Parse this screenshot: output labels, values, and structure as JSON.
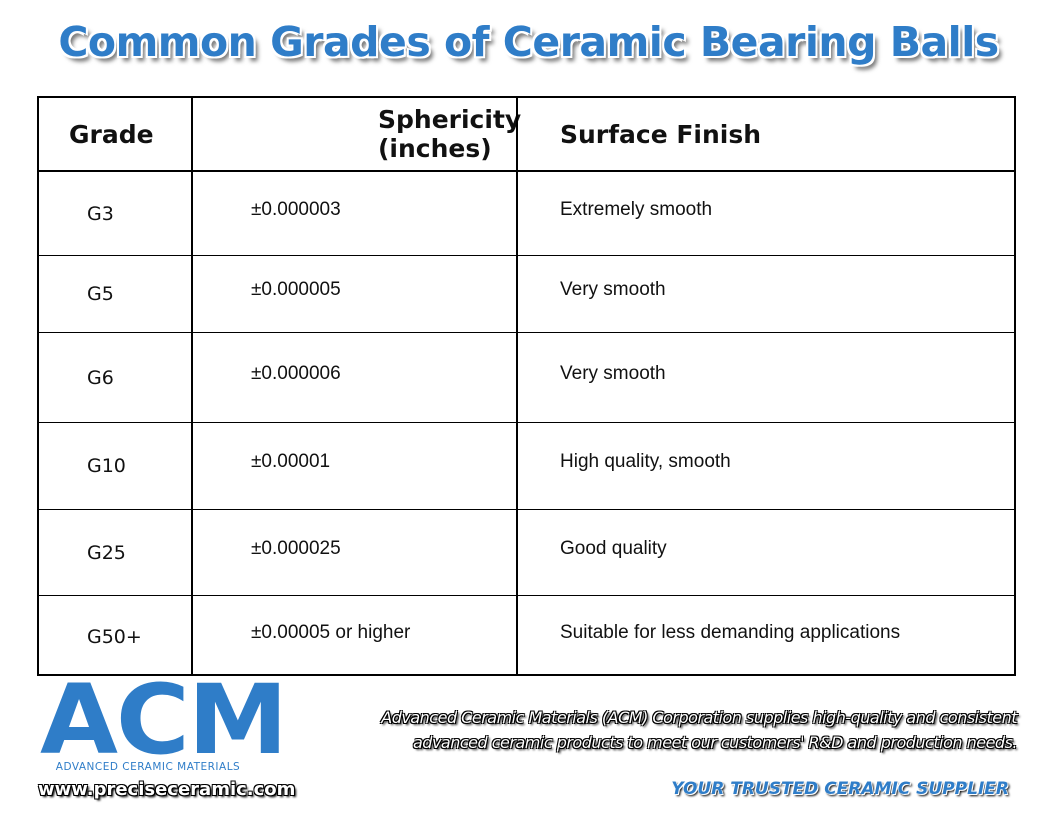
{
  "header": {
    "title": "Common Grades of Ceramic Bearing Balls"
  },
  "table": {
    "columns": [
      "Grade",
      "Sphericity (inches)",
      "Surface Finish"
    ],
    "rows": [
      [
        "G3",
        "±0.000003",
        "Extremely smooth"
      ],
      [
        "G5",
        "±0.000005",
        "Very smooth"
      ],
      [
        "G6",
        "±0.000006",
        "Very smooth"
      ],
      [
        "G10",
        "±0.00001",
        "High quality, smooth"
      ],
      [
        "G25",
        "±0.000025",
        "Good quality"
      ],
      [
        "G50+",
        "±0.00005 or higher",
        "Suitable for less demanding applications"
      ]
    ]
  },
  "footer": {
    "logo": "ACM",
    "logo_subtitle": "ADVANCED CERAMIC MATERIALS",
    "url": "www.preciseceramic.com",
    "description": [
      "Advanced Ceramic Materials (ACM) Corporation supplies high-quality and consistent",
      "advanced ceramic products to meet our customers' R&D and production needs."
    ],
    "tagline": "YOUR TRUSTED CERAMIC SUPPLIER"
  }
}
